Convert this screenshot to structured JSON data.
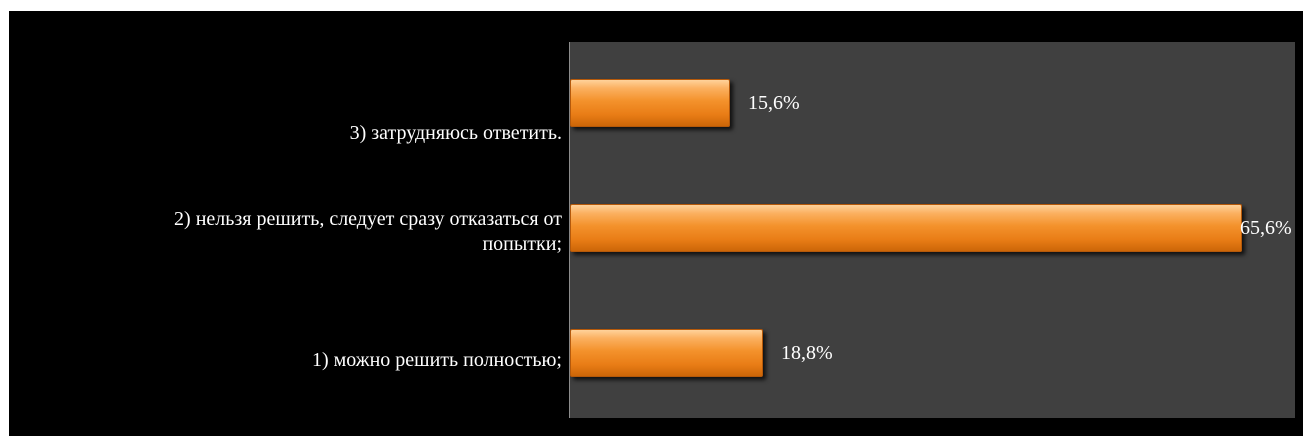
{
  "chart_data": {
    "type": "bar",
    "orientation": "horizontal",
    "categories": [
      "3) затрудняюсь ответить.",
      "2) нельзя решить, следует сразу отказаться от попытки;",
      "1) можно решить полностью;"
    ],
    "category_lines": [
      [
        "3) затрудняюсь ответить."
      ],
      [
        "2) нельзя решить, следует сразу отказаться от",
        "попытки;"
      ],
      [
        "1) можно решить полностью;"
      ]
    ],
    "values": [
      15.6,
      65.6,
      18.8
    ],
    "value_labels": [
      "15,6%",
      "65,6%",
      "18,8%"
    ],
    "xlim": [
      0,
      70
    ],
    "grid": false,
    "legend": "none",
    "colors": {
      "bar": "#f4922c",
      "plot_background": "#404040",
      "chart_background": "#000000",
      "text": "#ffffff"
    }
  }
}
